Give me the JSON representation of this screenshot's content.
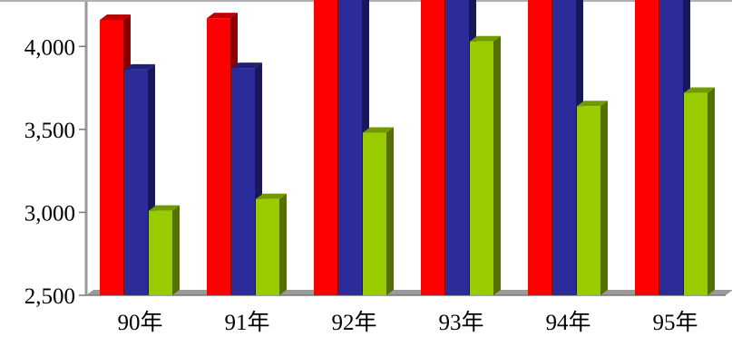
{
  "chart_data": {
    "type": "bar",
    "title": "",
    "xlabel": "",
    "ylabel": "",
    "categories": [
      "90年",
      "91年",
      "92年",
      "93年",
      "94年",
      "95年"
    ],
    "ylim": [
      2500,
      4280
    ],
    "yticks": [
      2500,
      3000,
      3500,
      4000
    ],
    "ytick_labels": [
      "2,500",
      "3,000",
      "3,500",
      "4,000"
    ],
    "grid": false,
    "legend": "none",
    "style": "3d-bar",
    "series": [
      {
        "values": [
          4160,
          4170,
          4400,
          4400,
          4400,
          4400
        ],
        "color": "#ff0000"
      },
      {
        "values": [
          3860,
          3870,
          4400,
          4400,
          4400,
          4400
        ],
        "color": "#2b2b9a"
      },
      {
        "values": [
          3010,
          3080,
          3480,
          4030,
          3640,
          3720
        ],
        "color": "#99cc00"
      }
    ]
  }
}
